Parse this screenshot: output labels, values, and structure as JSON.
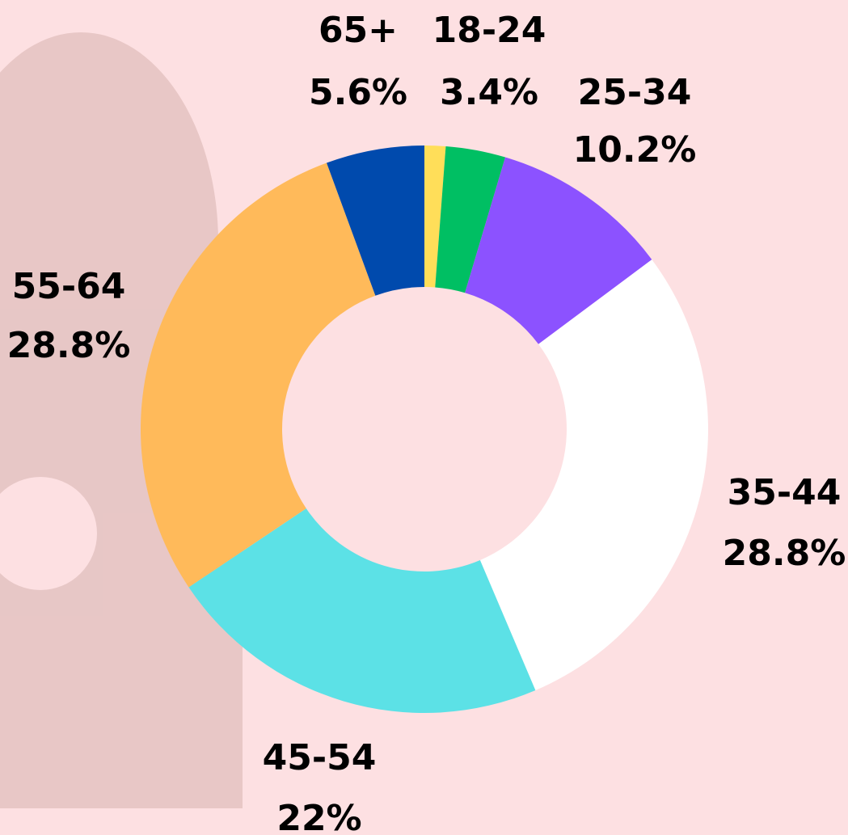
{
  "chart_data": {
    "type": "donut",
    "categories": [
      null,
      "18-24",
      "25-34",
      "35-44",
      "45-54",
      "55-64",
      "65+"
    ],
    "values": [
      1.2,
      3.4,
      10.2,
      28.8,
      22,
      28.8,
      5.6
    ],
    "value_labels": [
      null,
      "3.4%",
      "10.2%",
      "28.8%",
      "22%",
      "28.8%",
      "5.6%"
    ],
    "colors": [
      "#ffde59",
      "#00bf63",
      "#8c52ff",
      "#ffffff",
      "#5ce1e6",
      "#ffba5a",
      "#004aad"
    ]
  }
}
